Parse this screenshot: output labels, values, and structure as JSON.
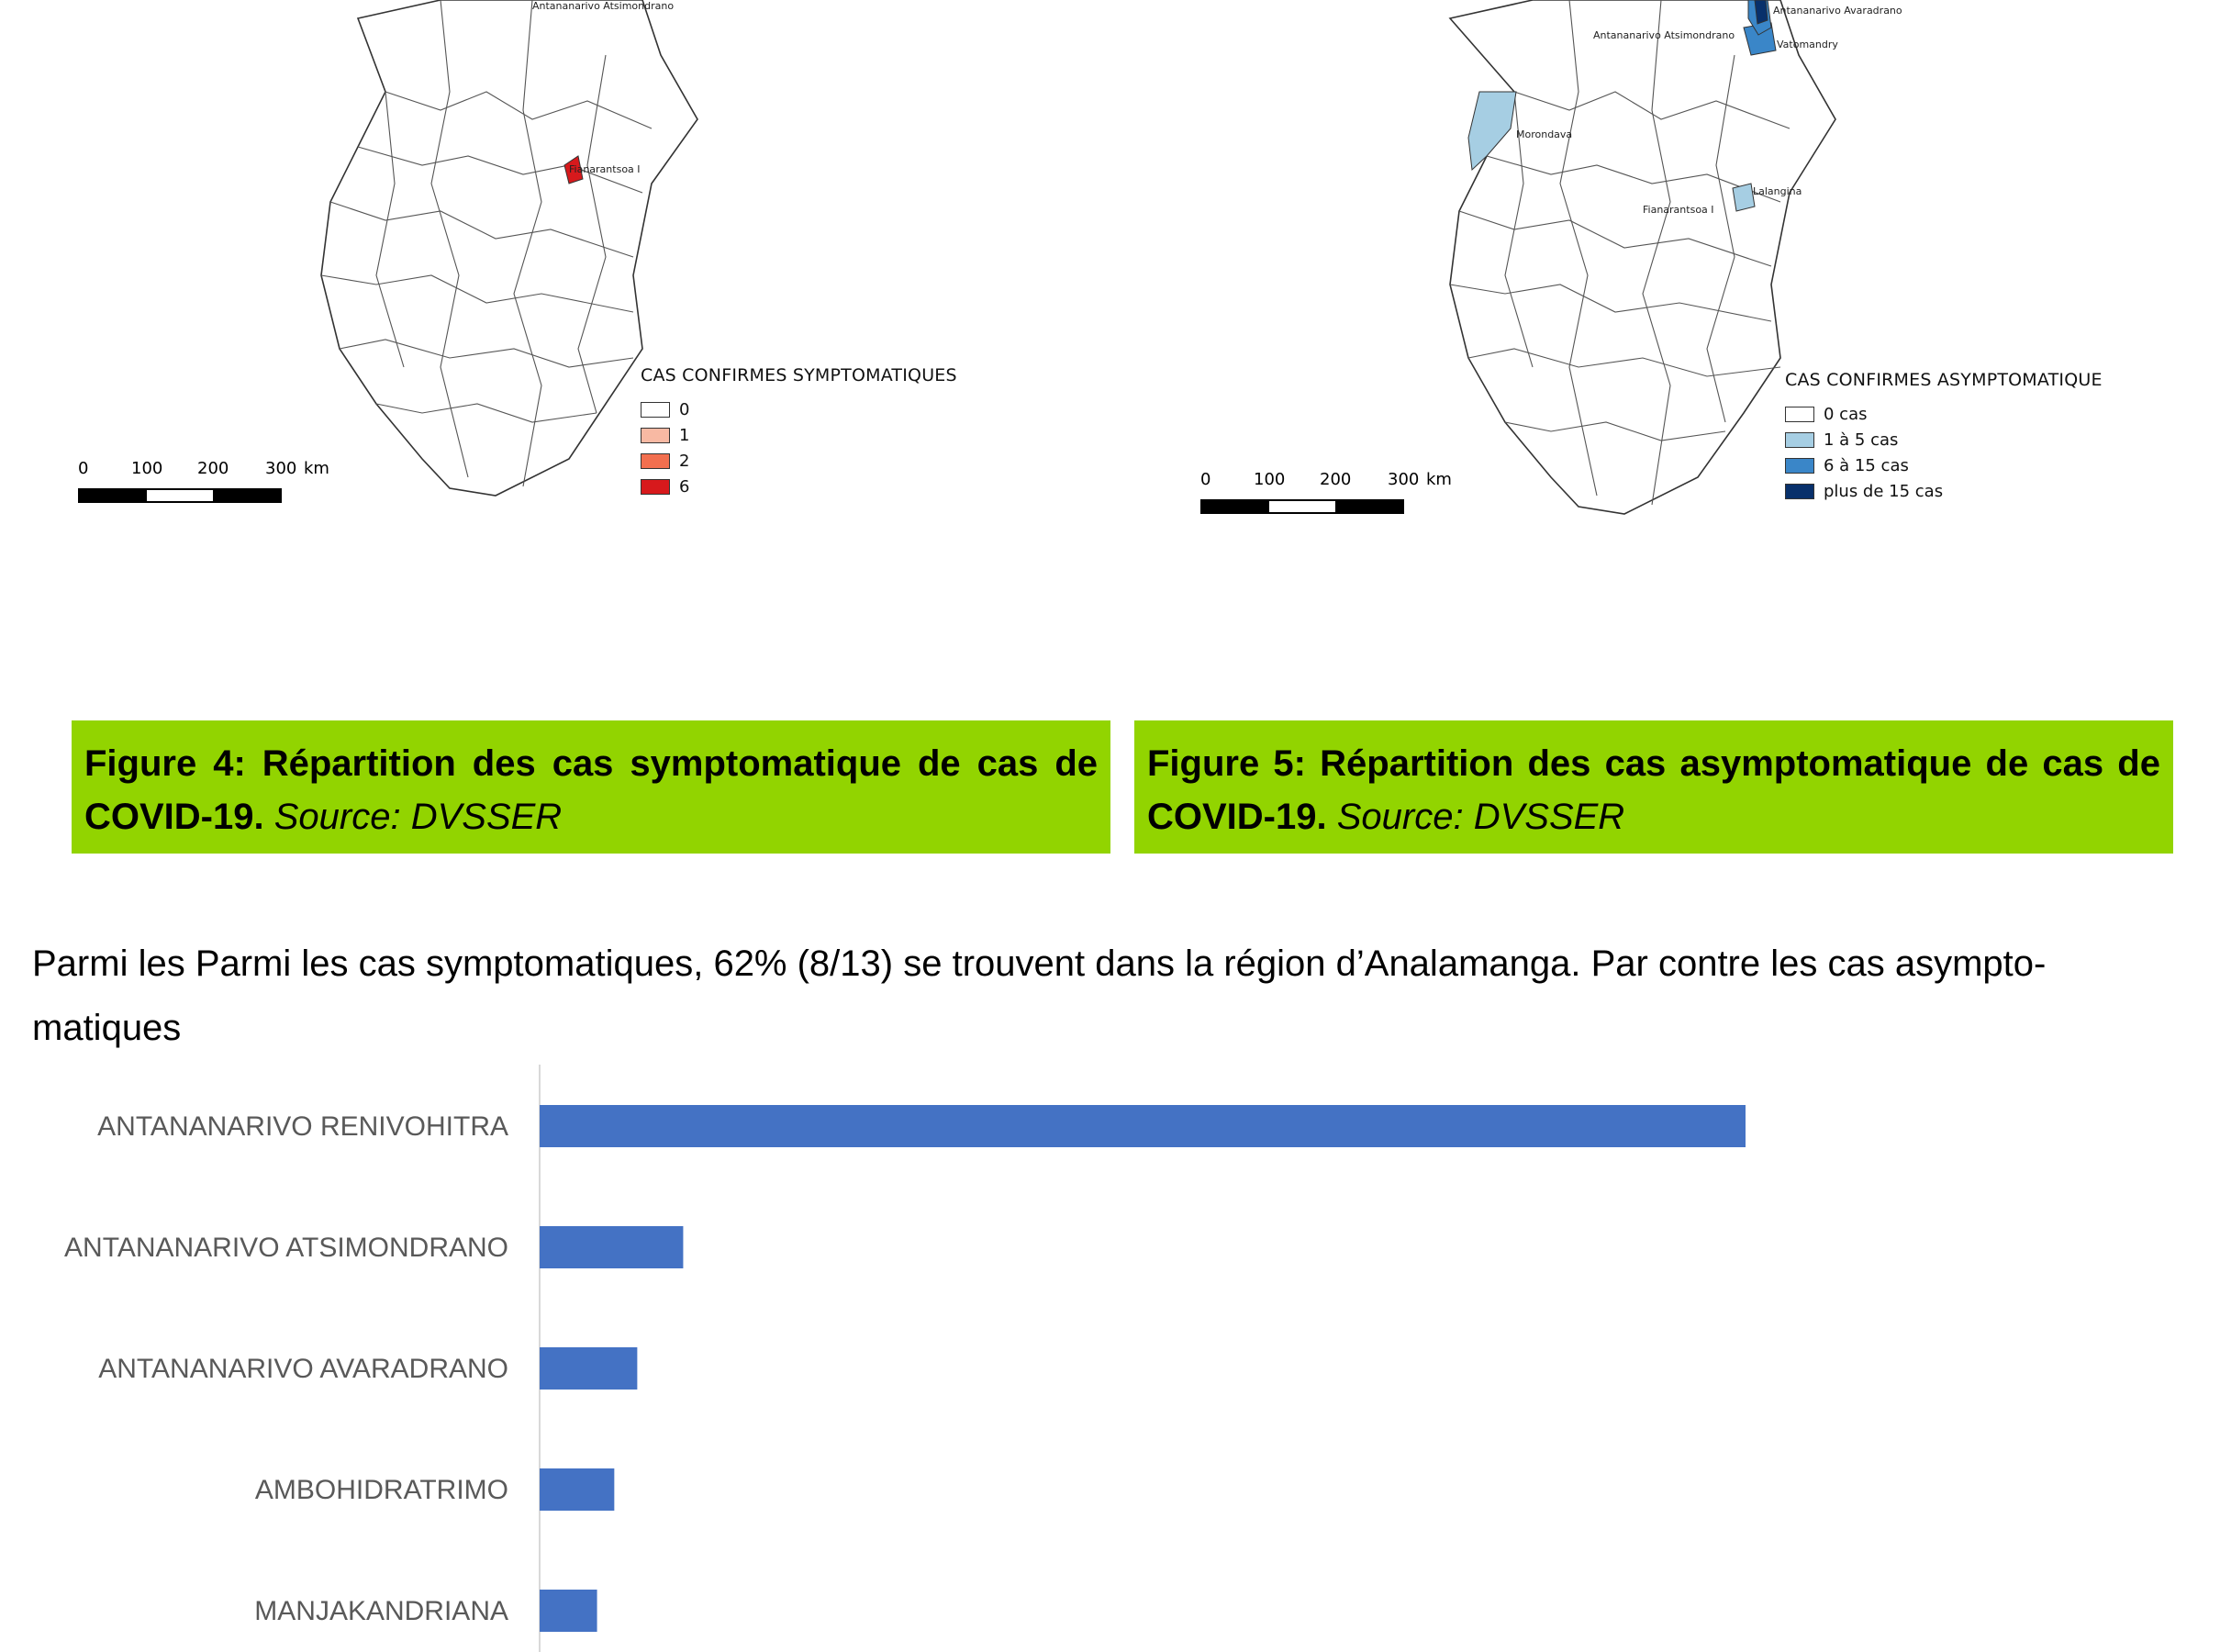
{
  "figure4": {
    "legend_title": "CAS CONFIRMES SYMPTOMATIQUES",
    "legend_items": [
      {
        "label": "0",
        "color": "#ffffff"
      },
      {
        "label": "1",
        "color": "#f8b9a3"
      },
      {
        "label": "2",
        "color": "#f26f4f"
      },
      {
        "label": "6",
        "color": "#d7191c"
      }
    ],
    "scale_labels": [
      "0",
      "100",
      "200",
      "300",
      "km"
    ],
    "places": [
      "Antananarivo Atsimondrano",
      "Fianarantsoa I"
    ],
    "caption_bold": "Figure 4: Répartition des cas symptomatique de cas de COVID-19.",
    "caption_source": "Source: DVSSER"
  },
  "figure5": {
    "legend_title": "CAS CONFIRMES ASYMPTOMATIQUE",
    "legend_items": [
      {
        "label": "0 cas",
        "color": "#ffffff"
      },
      {
        "label": "1 à 5 cas",
        "color": "#a6cee3"
      },
      {
        "label": "6 à 15 cas",
        "color": "#3a86c8"
      },
      {
        "label": "plus de 15 cas",
        "color": "#08306b"
      }
    ],
    "scale_labels": [
      "0",
      "100",
      "200",
      "300",
      "km"
    ],
    "places": [
      "Antananarivo Avaradrano",
      "Antananarivo Atsimondrano",
      "Vatomandry",
      "Morondava",
      "Lalangina",
      "Fianarantsoa I"
    ],
    "caption_bold": "Figure 5: Répartition des cas asymptomatique de cas de COVID-19.",
    "caption_source": "Source: DVSSER"
  },
  "paragraph": "Parmi les Parmi les cas symptomatiques, 62% (8/13) se trouvent dans la région d’Analamanga. Par contre les cas asympto-matiques",
  "chart_data": {
    "type": "bar",
    "orientation": "horizontal",
    "categories": [
      "ANTANANARIVO RENIVOHITRA",
      "ANTANANARIVO ATSIMONDRANO",
      "ANTANANARIVO AVARADRANO",
      "AMBOHIDRATRIMO",
      "MANJAKANDRIANA"
    ],
    "values": [
      105,
      12.5,
      8.5,
      6.5,
      5
    ],
    "bar_color": "#4472c4",
    "xlim": [
      0,
      140
    ],
    "title": "",
    "xlabel": "",
    "ylabel": ""
  }
}
